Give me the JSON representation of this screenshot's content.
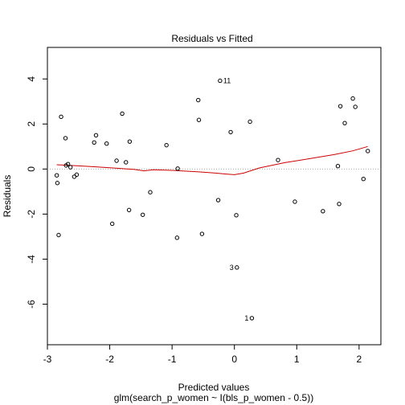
{
  "chart_data": {
    "type": "scatter",
    "title": "Residuals vs Fitted",
    "xlabel": "Predicted values",
    "xlabel_sub": "glm(search_p_women ~ I(bls_p_women - 0.5))",
    "ylabel": "Residuals",
    "xlim": [
      -3.0,
      2.35
    ],
    "ylim": [
      -7.8,
      5.4
    ],
    "xticks": [
      -3,
      -2,
      -1,
      0,
      1,
      2
    ],
    "yticks": [
      -6,
      -4,
      -2,
      0,
      2,
      4
    ],
    "grid": false,
    "reference_line": {
      "y": 0,
      "style": "dotted",
      "color": "#aaaaaa"
    },
    "points": [
      {
        "x": -2.85,
        "y": -0.28
      },
      {
        "x": -2.84,
        "y": -0.62
      },
      {
        "x": -2.82,
        "y": -2.93
      },
      {
        "x": -2.78,
        "y": 2.32
      },
      {
        "x": -2.71,
        "y": 1.37
      },
      {
        "x": -2.7,
        "y": 0.16
      },
      {
        "x": -2.67,
        "y": 0.22
      },
      {
        "x": -2.63,
        "y": 0.08
      },
      {
        "x": -2.57,
        "y": -0.34
      },
      {
        "x": -2.53,
        "y": -0.25
      },
      {
        "x": -2.25,
        "y": 1.18
      },
      {
        "x": -2.22,
        "y": 1.5
      },
      {
        "x": -2.05,
        "y": 1.13
      },
      {
        "x": -1.96,
        "y": -2.43
      },
      {
        "x": -1.89,
        "y": 0.37
      },
      {
        "x": -1.8,
        "y": 2.46
      },
      {
        "x": -1.74,
        "y": 0.3
      },
      {
        "x": -1.69,
        "y": -1.82
      },
      {
        "x": -1.68,
        "y": 1.22
      },
      {
        "x": -1.47,
        "y": -2.03
      },
      {
        "x": -1.35,
        "y": -1.03
      },
      {
        "x": -1.09,
        "y": 1.06
      },
      {
        "x": -0.92,
        "y": -3.05
      },
      {
        "x": -0.91,
        "y": 0.02
      },
      {
        "x": -0.58,
        "y": 3.06
      },
      {
        "x": -0.57,
        "y": 2.18
      },
      {
        "x": -0.52,
        "y": -2.88
      },
      {
        "x": -0.26,
        "y": -1.38
      },
      {
        "x": -0.23,
        "y": 3.92,
        "label": "11"
      },
      {
        "x": -0.06,
        "y": 1.64
      },
      {
        "x": 0.03,
        "y": -2.05
      },
      {
        "x": 0.04,
        "y": -4.37,
        "label": "3"
      },
      {
        "x": 0.25,
        "y": 2.1
      },
      {
        "x": 0.28,
        "y": -6.62,
        "label": "1"
      },
      {
        "x": 0.7,
        "y": 0.4
      },
      {
        "x": 0.97,
        "y": -1.45
      },
      {
        "x": 1.42,
        "y": -1.87
      },
      {
        "x": 1.66,
        "y": 0.13
      },
      {
        "x": 1.68,
        "y": -1.55
      },
      {
        "x": 1.7,
        "y": 2.79
      },
      {
        "x": 1.77,
        "y": 2.04
      },
      {
        "x": 1.9,
        "y": 3.13
      },
      {
        "x": 1.94,
        "y": 2.76
      },
      {
        "x": 2.07,
        "y": -0.44
      },
      {
        "x": 2.14,
        "y": 0.8
      }
    ],
    "smoother": {
      "color": "#cc0000",
      "points": [
        {
          "x": -2.85,
          "y": 0.19
        },
        {
          "x": -2.5,
          "y": 0.14
        },
        {
          "x": -2.2,
          "y": 0.09
        },
        {
          "x": -1.9,
          "y": 0.04
        },
        {
          "x": -1.6,
          "y": -0.02
        },
        {
          "x": -1.45,
          "y": -0.08
        },
        {
          "x": -1.3,
          "y": -0.03
        },
        {
          "x": -1.0,
          "y": -0.06
        },
        {
          "x": -0.6,
          "y": -0.12
        },
        {
          "x": -0.3,
          "y": -0.18
        },
        {
          "x": -0.15,
          "y": -0.22
        },
        {
          "x": 0.0,
          "y": -0.25
        },
        {
          "x": 0.15,
          "y": -0.18
        },
        {
          "x": 0.4,
          "y": 0.05
        },
        {
          "x": 0.8,
          "y": 0.28
        },
        {
          "x": 1.2,
          "y": 0.46
        },
        {
          "x": 1.6,
          "y": 0.64
        },
        {
          "x": 1.9,
          "y": 0.81
        },
        {
          "x": 2.14,
          "y": 1.0
        }
      ]
    }
  }
}
